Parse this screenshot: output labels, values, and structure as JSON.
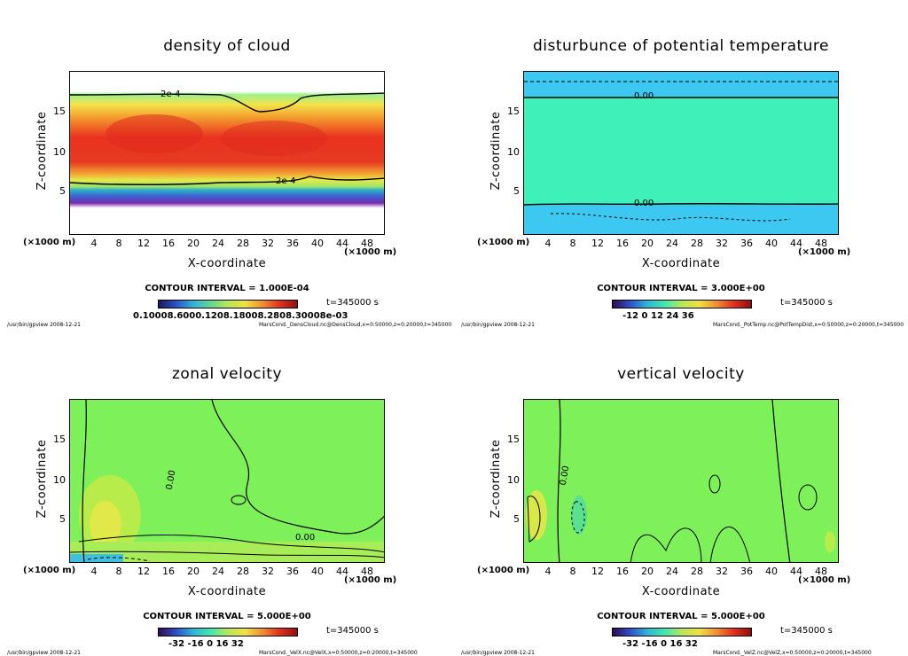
{
  "footer_left": "/usr/bin/gpview   2008-12-21",
  "panels": [
    {
      "title": "density of cloud",
      "xlabel": "X-coordinate",
      "ylabel": "Z-coordinate",
      "xunit": "(×1000 m)",
      "xunit2": "(×1000 m)",
      "contour_interval": "CONTOUR INTERVAL = 1.000E-04",
      "time": "t=345000  s",
      "colorbar_ticks": "0.10008.6000.1208.18008.2808.30008e-03",
      "footer_right": "MarsCond._DensCloud.nc@DensCloud,x=0:50000,z=0:20000,t=345000",
      "contour_labels": [
        "2e-4",
        "2e-4"
      ]
    },
    {
      "title": "disturbunce of potential temperature",
      "xlabel": "X-coordinate",
      "ylabel": "Z-coordinate",
      "xunit": "(×1000 m)",
      "xunit2": "(×1000 m)",
      "contour_interval": "CONTOUR INTERVAL = 3.000E+00",
      "time": "t=345000  s",
      "colorbar_ticks": "-12    0    12    24    36",
      "footer_right": "MarsCond._PotTemp.nc@PotTempDist,x=0:50000,z=0:20000,t=345000",
      "contour_labels": [
        "0.00",
        "0.00"
      ]
    },
    {
      "title": "zonal velocity",
      "xlabel": "X-coordinate",
      "ylabel": "Z-coordinate",
      "xunit": "(×1000 m)",
      "xunit2": "(×1000 m)",
      "contour_interval": "CONTOUR INTERVAL = 5.000E+00",
      "time": "t=345000  s",
      "colorbar_ticks": "-32   -16    0    16    32",
      "footer_right": "MarsCond._VelX.nc@VelX,x=0:50000,z=0:20000,t=345000",
      "contour_labels": [
        "0.00",
        "0.00"
      ]
    },
    {
      "title": "vertical velocity",
      "xlabel": "X-coordinate",
      "ylabel": "Z-coordinate",
      "xunit": "(×1000 m)",
      "xunit2": "(×1000 m)",
      "contour_interval": "CONTOUR INTERVAL = 5.000E+00",
      "time": "t=345000  s",
      "colorbar_ticks": "-32   -16    0    16    32",
      "footer_right": "MarsCond._VelZ.nc@VelZ,x=0:50000,z=0:20000,t=345000",
      "contour_labels": [
        "0.00"
      ]
    }
  ],
  "chart_data": [
    {
      "type": "heatmap",
      "title": "density of cloud",
      "xlabel": "X-coordinate",
      "ylabel": "Z-coordinate",
      "xlim": [
        0,
        50
      ],
      "ylim": [
        0,
        20
      ],
      "xticks": [
        "4",
        "8",
        "12",
        "16",
        "20",
        "24",
        "28",
        "32",
        "36",
        "40",
        "44",
        "48"
      ],
      "yticks": [
        "5",
        "10",
        "15"
      ],
      "contour_interval": 0.0001
    },
    {
      "type": "heatmap",
      "title": "disturbunce of potential temperature",
      "xlabel": "X-coordinate",
      "ylabel": "Z-coordinate",
      "xlim": [
        0,
        50
      ],
      "ylim": [
        0,
        20
      ],
      "xticks": [
        "4",
        "8",
        "12",
        "16",
        "20",
        "24",
        "28",
        "32",
        "36",
        "40",
        "44",
        "48"
      ],
      "yticks": [
        "5",
        "10",
        "15"
      ],
      "contour_interval": 3.0
    },
    {
      "type": "heatmap",
      "title": "zonal velocity",
      "xlabel": "X-coordinate",
      "ylabel": "Z-coordinate",
      "xlim": [
        0,
        50
      ],
      "ylim": [
        0,
        20
      ],
      "xticks": [
        "4",
        "8",
        "12",
        "16",
        "20",
        "24",
        "28",
        "32",
        "36",
        "40",
        "44",
        "48"
      ],
      "yticks": [
        "5",
        "10",
        "15"
      ],
      "contour_interval": 5.0
    },
    {
      "type": "heatmap",
      "title": "vertical velocity",
      "xlabel": "X-coordinate",
      "ylabel": "Z-coordinate",
      "xlim": [
        0,
        50
      ],
      "ylim": [
        0,
        20
      ],
      "xticks": [
        "4",
        "8",
        "12",
        "16",
        "20",
        "24",
        "28",
        "32",
        "36",
        "40",
        "44",
        "48"
      ],
      "yticks": [
        "5",
        "10",
        "15"
      ],
      "contour_interval": 5.0
    }
  ]
}
